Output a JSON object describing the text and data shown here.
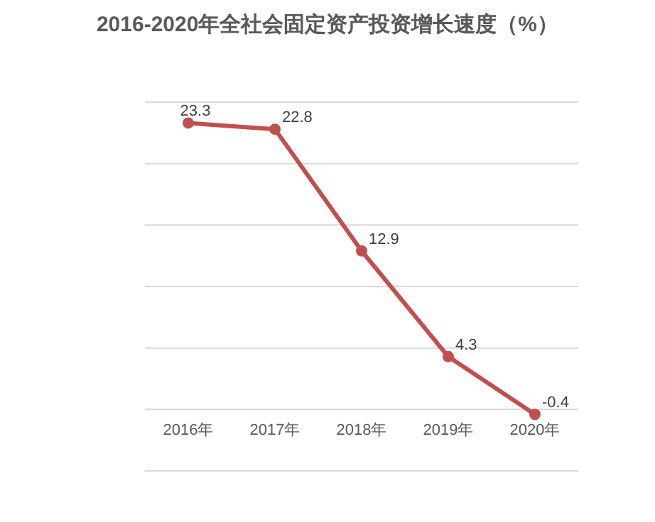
{
  "chart_data": {
    "type": "line",
    "title": "2016-2020年全社会固定资产投资增长速度（%）",
    "categories": [
      "2016年",
      "2017年",
      "2018年",
      "2019年",
      "2020年"
    ],
    "series": [
      {
        "color": "#c0504d",
        "values": [
          23.3,
          22.8,
          12.9,
          4.3,
          -0.4
        ]
      }
    ],
    "data_labels": true,
    "marker": "circle",
    "grid": "y",
    "tick_labels": "x",
    "ylim": [
      -5,
      25
    ],
    "yticks": [
      {
        "value": -5,
        "label": null
      },
      {
        "value": 0,
        "label": null
      },
      {
        "value": 5,
        "label": null
      },
      {
        "value": 10,
        "label": null
      },
      {
        "value": 15,
        "label": null
      },
      {
        "value": 20,
        "label": null
      },
      {
        "value": 25,
        "label": null
      }
    ]
  }
}
